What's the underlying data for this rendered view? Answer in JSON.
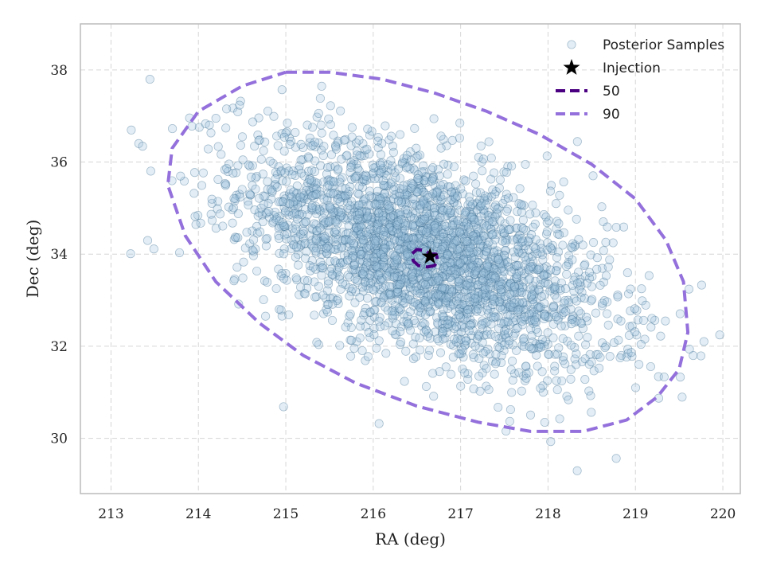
{
  "chart_data": {
    "type": "scatter",
    "title": "",
    "xlabel": "RA (deg)",
    "ylabel": "Dec (deg)",
    "xlim": [
      212.65,
      220.2
    ],
    "ylim": [
      28.8,
      39.0
    ],
    "xticks": [
      213,
      214,
      215,
      216,
      217,
      218,
      219,
      220
    ],
    "yticks": [
      30,
      32,
      34,
      36,
      38
    ],
    "grid": true,
    "legend_position": "top-right",
    "colors": {
      "samples_fill": "#9ec4df",
      "samples_edge": "#3f6f93",
      "contour_50": "#4b0082",
      "contour_90": "#9370db",
      "injection": "#000000"
    },
    "legend": [
      {
        "label": "Posterior Samples",
        "kind": "point"
      },
      {
        "label": "Injection",
        "kind": "star"
      },
      {
        "label": "50",
        "kind": "dash50"
      },
      {
        "label": "90",
        "kind": "dash90"
      }
    ],
    "injection": {
      "x": 216.65,
      "y": 33.95
    },
    "posterior_samples": {
      "count": 3000,
      "center": [
        216.6,
        34.0
      ],
      "spread_ra": 1.05,
      "spread_dec": 1.25,
      "correlation": -0.55
    },
    "contour_50": {
      "label": "50",
      "x": [
        216.65,
        216.72,
        216.74,
        216.7,
        216.62,
        216.52,
        216.46,
        216.44,
        216.5,
        216.6,
        216.65
      ],
      "y": [
        34.0,
        34.0,
        33.85,
        33.75,
        33.72,
        33.75,
        33.85,
        34.0,
        34.1,
        34.08,
        34.0
      ]
    },
    "contour_90": {
      "label": "90",
      "x": [
        215.0,
        215.5,
        216.1,
        216.7,
        217.3,
        217.9,
        218.5,
        219.0,
        219.35,
        219.55,
        219.6,
        219.5,
        219.25,
        218.9,
        218.4,
        217.8,
        217.2,
        216.5,
        215.8,
        215.2,
        214.7,
        214.2,
        213.85,
        213.65,
        213.7,
        214.0,
        214.5,
        215.0
      ],
      "y": [
        37.95,
        37.95,
        37.8,
        37.5,
        37.1,
        36.6,
        35.95,
        35.2,
        34.3,
        33.4,
        32.3,
        31.5,
        30.9,
        30.4,
        30.15,
        30.15,
        30.35,
        30.7,
        31.2,
        31.8,
        32.5,
        33.4,
        34.4,
        35.5,
        36.3,
        37.1,
        37.65,
        37.95
      ]
    }
  }
}
